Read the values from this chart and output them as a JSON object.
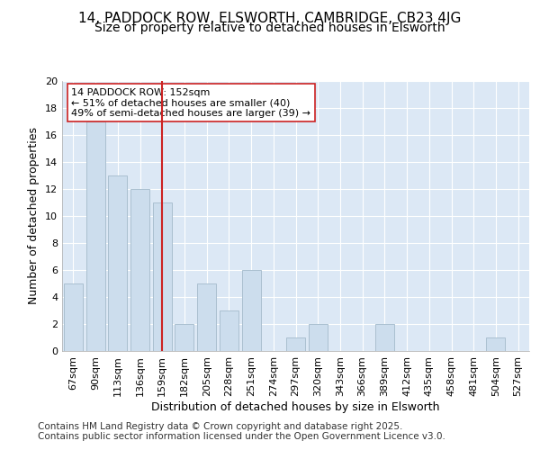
{
  "title1": "14, PADDOCK ROW, ELSWORTH, CAMBRIDGE, CB23 4JG",
  "title2": "Size of property relative to detached houses in Elsworth",
  "xlabel": "Distribution of detached houses by size in Elsworth",
  "ylabel": "Number of detached properties",
  "categories": [
    "67sqm",
    "90sqm",
    "113sqm",
    "136sqm",
    "159sqm",
    "182sqm",
    "205sqm",
    "228sqm",
    "251sqm",
    "274sqm",
    "297sqm",
    "320sqm",
    "343sqm",
    "366sqm",
    "389sqm",
    "412sqm",
    "435sqm",
    "458sqm",
    "481sqm",
    "504sqm",
    "527sqm"
  ],
  "values": [
    5,
    17,
    13,
    12,
    11,
    2,
    5,
    3,
    6,
    0,
    1,
    2,
    0,
    0,
    2,
    0,
    0,
    0,
    0,
    1,
    0
  ],
  "bar_color": "#ccdded",
  "bar_edge_color": "#aabfcf",
  "vline_x": 4,
  "vline_color": "#cc2222",
  "annotation_line1": "14 PADDOCK ROW: 152sqm",
  "annotation_line2": "← 51% of detached houses are smaller (40)",
  "annotation_line3": "49% of semi-detached houses are larger (39) →",
  "annotation_box_color": "#ffffff",
  "annotation_box_edge": "#cc2222",
  "ylim": [
    0,
    20
  ],
  "yticks": [
    0,
    2,
    4,
    6,
    8,
    10,
    12,
    14,
    16,
    18,
    20
  ],
  "bg_color": "#ffffff",
  "plot_bg_color": "#dce8f5",
  "grid_color": "#ffffff",
  "footer1": "Contains HM Land Registry data © Crown copyright and database right 2025.",
  "footer2": "Contains public sector information licensed under the Open Government Licence v3.0.",
  "title_fontsize": 11,
  "subtitle_fontsize": 10,
  "axis_label_fontsize": 9,
  "tick_fontsize": 8,
  "annotation_fontsize": 8,
  "footer_fontsize": 7.5
}
